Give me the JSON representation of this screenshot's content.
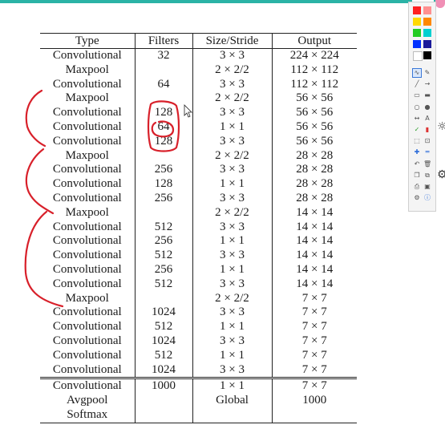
{
  "table": {
    "headers": [
      "Type",
      "Filters",
      "Size/Stride",
      "Output"
    ],
    "rows": [
      [
        "Convolutional",
        "32",
        "3 × 3",
        "224 × 224"
      ],
      [
        "Maxpool",
        "",
        "2 × 2/2",
        "112 × 112"
      ],
      [
        "Convolutional",
        "64",
        "3 × 3",
        "112 × 112"
      ],
      [
        "Maxpool",
        "",
        "2 × 2/2",
        "56 × 56"
      ],
      [
        "Convolutional",
        "128",
        "3 × 3",
        "56 × 56"
      ],
      [
        "Convolutional",
        "64",
        "1 × 1",
        "56 × 56"
      ],
      [
        "Convolutional",
        "128",
        "3 × 3",
        "56 × 56"
      ],
      [
        "Maxpool",
        "",
        "2 × 2/2",
        "28 × 28"
      ],
      [
        "Convolutional",
        "256",
        "3 × 3",
        "28 × 28"
      ],
      [
        "Convolutional",
        "128",
        "1 × 1",
        "28 × 28"
      ],
      [
        "Convolutional",
        "256",
        "3 × 3",
        "28 × 28"
      ],
      [
        "Maxpool",
        "",
        "2 × 2/2",
        "14 × 14"
      ],
      [
        "Convolutional",
        "512",
        "3 × 3",
        "14 × 14"
      ],
      [
        "Convolutional",
        "256",
        "1 × 1",
        "14 × 14"
      ],
      [
        "Convolutional",
        "512",
        "3 × 3",
        "14 × 14"
      ],
      [
        "Convolutional",
        "256",
        "1 × 1",
        "14 × 14"
      ],
      [
        "Convolutional",
        "512",
        "3 × 3",
        "14 × 14"
      ],
      [
        "Maxpool",
        "",
        "2 × 2/2",
        "7 × 7"
      ],
      [
        "Convolutional",
        "1024",
        "3 × 3",
        "7 × 7"
      ],
      [
        "Convolutional",
        "512",
        "1 × 1",
        "7 × 7"
      ],
      [
        "Convolutional",
        "1024",
        "3 × 3",
        "7 × 7"
      ],
      [
        "Convolutional",
        "512",
        "1 × 1",
        "7 × 7"
      ],
      [
        "Convolutional",
        "1024",
        "3 × 3",
        "7 × 7"
      ]
    ],
    "final_rows": [
      [
        "Convolutional",
        "1000",
        "1 × 1",
        "7 × 7"
      ],
      [
        "Avgpool",
        "",
        "Global",
        "1000"
      ],
      [
        "Softmax",
        "",
        "",
        ""
      ]
    ]
  },
  "annotation_color": "#d8202a",
  "palette": {
    "colors": [
      "#ff2020",
      "#ff9090",
      "#ffd800",
      "#ff8800",
      "#22cc22",
      "#00d0d0",
      "#0030ff",
      "#1a1a9a",
      "#ffffff",
      "#000000"
    ],
    "tools": [
      "curve-icon",
      "pen-icon",
      "line-icon",
      "arrow-icon",
      "rect-outline-icon",
      "rect-filled-icon",
      "ellipse-outline-icon",
      "ellipse-filled-icon",
      "double-arrow-icon",
      "text-icon",
      "check-icon",
      "highlighter-icon",
      "select-icon",
      "zoom-icon",
      "crosshair-icon",
      "minus-icon",
      "undo-icon",
      "clear-icon",
      "copy-icon",
      "paste-icon",
      "print-icon",
      "save-icon",
      "settings-icon",
      "info-icon"
    ]
  }
}
